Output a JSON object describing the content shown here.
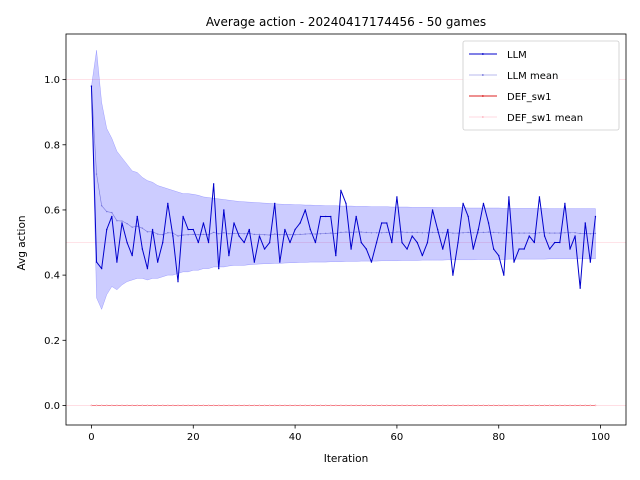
{
  "chart_data": {
    "type": "line",
    "title": "Average action - 20240417174456 - 50 games",
    "xlabel": "Iteration",
    "ylabel": "Avg action",
    "xlim": [
      -5,
      105
    ],
    "ylim": [
      -0.06,
      1.14
    ],
    "xticks": [
      0,
      20,
      40,
      60,
      80,
      100
    ],
    "yticks": [
      0.0,
      0.2,
      0.4,
      0.6,
      0.8,
      1.0
    ],
    "grid": false,
    "legend_position": "top-right",
    "x": [
      0,
      1,
      2,
      3,
      4,
      5,
      6,
      7,
      8,
      9,
      10,
      11,
      12,
      13,
      14,
      15,
      16,
      17,
      18,
      19,
      20,
      21,
      22,
      23,
      24,
      25,
      26,
      27,
      28,
      29,
      30,
      31,
      32,
      33,
      34,
      35,
      36,
      37,
      38,
      39,
      40,
      41,
      42,
      43,
      44,
      45,
      46,
      47,
      48,
      49,
      50,
      51,
      52,
      53,
      54,
      55,
      56,
      57,
      58,
      59,
      60,
      61,
      62,
      63,
      64,
      65,
      66,
      67,
      68,
      69,
      70,
      71,
      72,
      73,
      74,
      75,
      76,
      77,
      78,
      79,
      80,
      81,
      82,
      83,
      84,
      85,
      86,
      87,
      88,
      89,
      90,
      91,
      92,
      93,
      94,
      95,
      96,
      97,
      98,
      99
    ],
    "series": [
      {
        "name": "LLM",
        "color": "#0000cc",
        "values": [
          0.98,
          0.44,
          0.42,
          0.54,
          0.58,
          0.44,
          0.56,
          0.5,
          0.46,
          0.58,
          0.48,
          0.42,
          0.54,
          0.44,
          0.5,
          0.62,
          0.52,
          0.38,
          0.58,
          0.54,
          0.54,
          0.5,
          0.56,
          0.5,
          0.68,
          0.42,
          0.6,
          0.46,
          0.56,
          0.52,
          0.5,
          0.54,
          0.44,
          0.52,
          0.48,
          0.5,
          0.62,
          0.44,
          0.54,
          0.5,
          0.54,
          0.56,
          0.6,
          0.54,
          0.5,
          0.58,
          0.58,
          0.58,
          0.46,
          0.66,
          0.62,
          0.48,
          0.58,
          0.5,
          0.48,
          0.44,
          0.5,
          0.56,
          0.56,
          0.5,
          0.64,
          0.5,
          0.48,
          0.52,
          0.5,
          0.46,
          0.5,
          0.6,
          0.54,
          0.48,
          0.54,
          0.4,
          0.5,
          0.62,
          0.58,
          0.48,
          0.54,
          0.62,
          0.56,
          0.48,
          0.46,
          0.4,
          0.64,
          0.44,
          0.48,
          0.48,
          0.52,
          0.5,
          0.64,
          0.52,
          0.48,
          0.5,
          0.5,
          0.62,
          0.48,
          0.52,
          0.36,
          0.56,
          0.44,
          0.58
        ]
      },
      {
        "name": "LLM mean",
        "color": "#7777dd",
        "values": [
          0.98,
          0.71,
          0.613,
          0.595,
          0.592,
          0.567,
          0.566,
          0.558,
          0.547,
          0.55,
          0.544,
          0.533,
          0.533,
          0.526,
          0.524,
          0.53,
          0.529,
          0.52,
          0.523,
          0.524,
          0.525,
          0.524,
          0.525,
          0.524,
          0.531,
          0.527,
          0.53,
          0.527,
          0.528,
          0.528,
          0.527,
          0.528,
          0.525,
          0.525,
          0.524,
          0.523,
          0.526,
          0.524,
          0.524,
          0.524,
          0.524,
          0.525,
          0.526,
          0.527,
          0.526,
          0.527,
          0.528,
          0.529,
          0.528,
          0.531,
          0.532,
          0.531,
          0.532,
          0.532,
          0.531,
          0.53,
          0.53,
          0.53,
          0.531,
          0.53,
          0.532,
          0.532,
          0.531,
          0.531,
          0.531,
          0.53,
          0.53,
          0.531,
          0.531,
          0.53,
          0.531,
          0.529,
          0.529,
          0.53,
          0.531,
          0.53,
          0.53,
          0.531,
          0.532,
          0.531,
          0.53,
          0.529,
          0.53,
          0.529,
          0.529,
          0.529,
          0.529,
          0.528,
          0.53,
          0.53,
          0.529,
          0.529,
          0.529,
          0.53,
          0.53,
          0.53,
          0.528,
          0.528,
          0.527,
          0.528
        ]
      },
      {
        "name": "DEF_sw1",
        "color": "#dd2222",
        "values": [
          0,
          0,
          0,
          0,
          0,
          0,
          0,
          0,
          0,
          0,
          0,
          0,
          0,
          0,
          0,
          0,
          0,
          0,
          0,
          0,
          0,
          0,
          0,
          0,
          0,
          0,
          0,
          0,
          0,
          0,
          0,
          0,
          0,
          0,
          0,
          0,
          0,
          0,
          0,
          0,
          0,
          0,
          0,
          0,
          0,
          0,
          0,
          0,
          0,
          0,
          0,
          0,
          0,
          0,
          0,
          0,
          0,
          0,
          0,
          0,
          0,
          0,
          0,
          0,
          0,
          0,
          0,
          0,
          0,
          0,
          0,
          0,
          0,
          0,
          0,
          0,
          0,
          0,
          0,
          0,
          0,
          0,
          0,
          0,
          0,
          0,
          0,
          0,
          0,
          0,
          0,
          0,
          0,
          0,
          0,
          0,
          0,
          0,
          0,
          0
        ]
      },
      {
        "name": "DEF_sw1 mean",
        "color": "#ffb6c1",
        "values": [
          0,
          0,
          0,
          0,
          0,
          0,
          0,
          0,
          0,
          0,
          0,
          0,
          0,
          0,
          0,
          0,
          0,
          0,
          0,
          0,
          0,
          0,
          0,
          0,
          0,
          0,
          0,
          0,
          0,
          0,
          0,
          0,
          0,
          0,
          0,
          0,
          0,
          0,
          0,
          0,
          0,
          0,
          0,
          0,
          0,
          0,
          0,
          0,
          0,
          0,
          0,
          0,
          0,
          0,
          0,
          0,
          0,
          0,
          0,
          0,
          0,
          0,
          0,
          0,
          0,
          0,
          0,
          0,
          0,
          0,
          0,
          0,
          0,
          0,
          0,
          0,
          0,
          0,
          0,
          0,
          0,
          0,
          0,
          0,
          0,
          0,
          0,
          0,
          0,
          0,
          0,
          0,
          0,
          0,
          0,
          0,
          0,
          0,
          0,
          0
        ]
      }
    ],
    "band": {
      "color": "#0000ff",
      "opacity": 0.2,
      "upper": [
        0.98,
        1.09,
        0.93,
        0.85,
        0.82,
        0.78,
        0.76,
        0.74,
        0.72,
        0.715,
        0.7,
        0.69,
        0.685,
        0.675,
        0.67,
        0.665,
        0.66,
        0.655,
        0.65,
        0.65,
        0.648,
        0.645,
        0.64,
        0.638,
        0.636,
        0.634,
        0.632,
        0.63,
        0.628,
        0.626,
        0.625,
        0.624,
        0.623,
        0.622,
        0.621,
        0.62,
        0.619,
        0.618,
        0.617,
        0.617,
        0.616,
        0.616,
        0.615,
        0.615,
        0.614,
        0.614,
        0.613,
        0.613,
        0.613,
        0.612,
        0.612,
        0.612,
        0.611,
        0.611,
        0.611,
        0.61,
        0.61,
        0.61,
        0.61,
        0.609,
        0.609,
        0.609,
        0.609,
        0.608,
        0.608,
        0.608,
        0.608,
        0.608,
        0.607,
        0.607,
        0.607,
        0.607,
        0.607,
        0.607,
        0.606,
        0.606,
        0.606,
        0.606,
        0.606,
        0.606,
        0.606,
        0.605,
        0.605,
        0.605,
        0.605,
        0.605,
        0.605,
        0.605,
        0.605,
        0.605,
        0.604,
        0.604,
        0.604,
        0.604,
        0.604,
        0.604,
        0.604,
        0.604,
        0.604,
        0.604
      ],
      "lower": [
        0.98,
        0.33,
        0.295,
        0.34,
        0.365,
        0.355,
        0.37,
        0.38,
        0.385,
        0.39,
        0.39,
        0.385,
        0.39,
        0.39,
        0.395,
        0.4,
        0.4,
        0.405,
        0.41,
        0.41,
        0.415,
        0.415,
        0.42,
        0.42,
        0.425,
        0.425,
        0.425,
        0.428,
        0.43,
        0.43,
        0.43,
        0.432,
        0.433,
        0.434,
        0.435,
        0.435,
        0.436,
        0.436,
        0.437,
        0.438,
        0.438,
        0.439,
        0.439,
        0.44,
        0.44,
        0.44,
        0.44,
        0.441,
        0.441,
        0.441,
        0.442,
        0.442,
        0.442,
        0.443,
        0.443,
        0.443,
        0.443,
        0.444,
        0.444,
        0.444,
        0.444,
        0.445,
        0.445,
        0.445,
        0.445,
        0.446,
        0.446,
        0.446,
        0.446,
        0.446,
        0.447,
        0.447,
        0.447,
        0.447,
        0.447,
        0.447,
        0.448,
        0.448,
        0.448,
        0.448,
        0.448,
        0.448,
        0.449,
        0.449,
        0.449,
        0.449,
        0.449,
        0.449,
        0.449,
        0.449,
        0.45,
        0.45,
        0.45,
        0.45,
        0.45,
        0.45,
        0.45,
        0.45,
        0.45,
        0.45
      ]
    },
    "reference_lines": [
      {
        "y": 1.0,
        "color": "#ffc0cb"
      },
      {
        "y": 0.5,
        "color": "#ffc0cb"
      },
      {
        "y": 0.0,
        "color": "#ffc0cb"
      }
    ]
  }
}
